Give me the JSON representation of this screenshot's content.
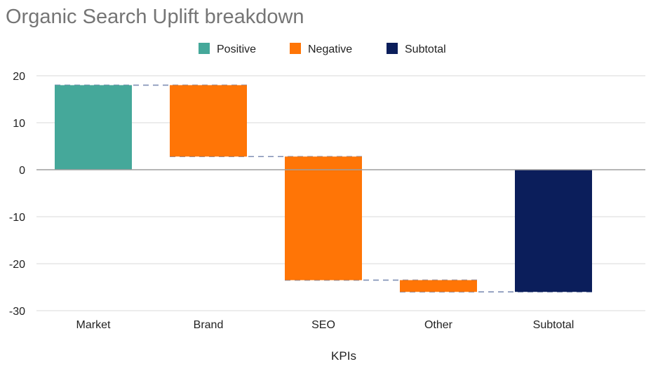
{
  "chart_data": {
    "type": "waterfall",
    "title": "Organic Search Uplift breakdown",
    "xlabel": "KPIs",
    "ylabel": "",
    "ylim": [
      -30,
      20
    ],
    "yticks": [
      20,
      10,
      0,
      -10,
      -20,
      -30
    ],
    "grid": true,
    "legend_position": "top",
    "legend": [
      {
        "name": "Positive",
        "color": "#45A89A"
      },
      {
        "name": "Negative",
        "color": "#FF7506"
      },
      {
        "name": "Subtotal",
        "color": "#0B1E5B"
      }
    ],
    "categories": [
      "Market",
      "Brand",
      "SEO",
      "Other",
      "Subtotal"
    ],
    "bars": [
      {
        "category": "Market",
        "kind": "Positive",
        "start": 0,
        "end": 18
      },
      {
        "category": "Brand",
        "kind": "Negative",
        "start": 18,
        "end": 2.8
      },
      {
        "category": "SEO",
        "kind": "Negative",
        "start": 2.8,
        "end": -23.5
      },
      {
        "category": "Other",
        "kind": "Negative",
        "start": -23.5,
        "end": -26
      },
      {
        "category": "Subtotal",
        "kind": "Subtotal",
        "start": 0,
        "end": -26
      }
    ]
  }
}
